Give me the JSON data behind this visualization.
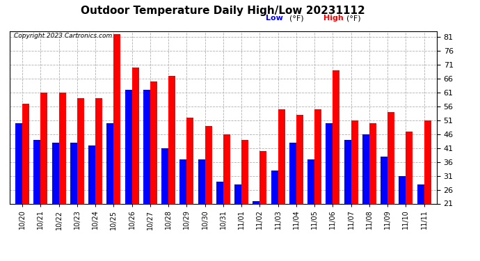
{
  "title": "Outdoor Temperature Daily High/Low 20231112",
  "copyright": "Copyright 2023 Cartronics.com",
  "legend_low": "Low",
  "legend_high": "High",
  "legend_unit": "(°F)",
  "ylim": [
    21.0,
    83.0
  ],
  "yticks": [
    21.0,
    26.0,
    31.0,
    36.0,
    41.0,
    46.0,
    51.0,
    56.0,
    61.0,
    66.0,
    71.0,
    76.0,
    81.0
  ],
  "x_labels": [
    "10/20",
    "10/21",
    "10/22",
    "10/23",
    "10/24",
    "10/25",
    "10/26",
    "10/27",
    "10/28",
    "10/29",
    "10/30",
    "10/31",
    "11/01",
    "11/02",
    "11/03",
    "11/04",
    "11/05",
    "11/06",
    "11/07",
    "11/08",
    "11/09",
    "11/10",
    "11/11"
  ],
  "high_temps": [
    57,
    61,
    61,
    59,
    59,
    82,
    70,
    65,
    67,
    52,
    49,
    46,
    44,
    40,
    55,
    53,
    55,
    69,
    51,
    50,
    54,
    47,
    51
  ],
  "low_temps": [
    50,
    44,
    43,
    43,
    42,
    50,
    62,
    62,
    41,
    37,
    37,
    29,
    28,
    22,
    33,
    43,
    37,
    50,
    44,
    46,
    38,
    31,
    28
  ],
  "high_color": "#ff0000",
  "low_color": "#0000ff",
  "bg_color": "#ffffff",
  "grid_color": "#b0b0b0",
  "title_fontsize": 11,
  "tick_fontsize": 8,
  "bar_width": 0.38
}
